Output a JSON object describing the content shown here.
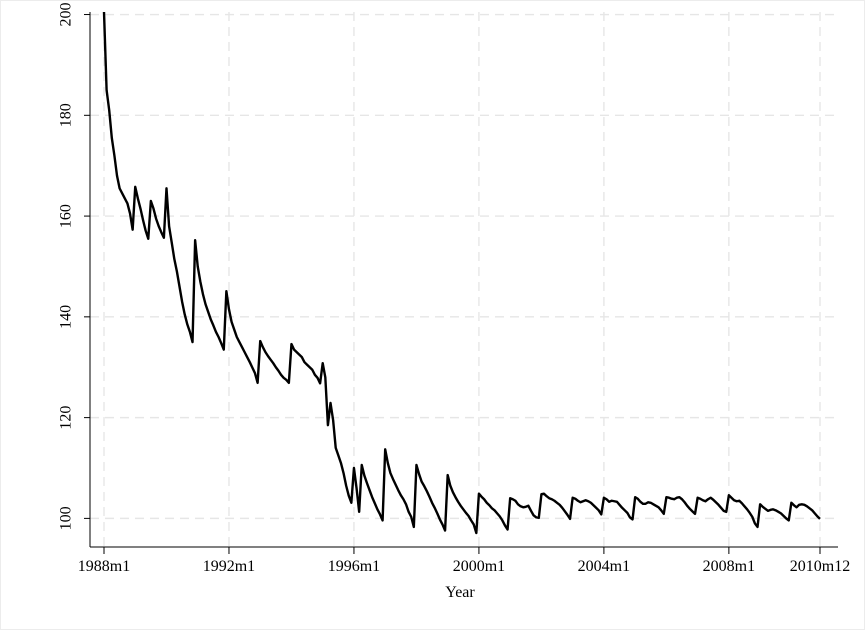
{
  "chart_data": {
    "type": "line",
    "title": "",
    "xlabel": "Year",
    "ylabel": "",
    "x_tick_labels": [
      "1988m1",
      "1992m1",
      "1996m1",
      "2000m1",
      "2004m1",
      "2008m1",
      "2010m12"
    ],
    "x_ticks": [
      "1988-01",
      "1992-01",
      "1996-01",
      "2000-01",
      "2004-01",
      "2008-01",
      "2010-12"
    ],
    "y_ticks": [
      100,
      120,
      140,
      160,
      180,
      200
    ],
    "xlim": [
      "1988-01",
      "2010-12"
    ],
    "ylim": [
      97,
      201
    ],
    "grid": true,
    "line_color": "#000000",
    "grid_color": "#e6e6e6",
    "series": [
      {
        "x": [
          "1988-01",
          "1988-02",
          "1988-03",
          "1988-04",
          "1988-05",
          "1988-06",
          "1988-07",
          "1988-08",
          "1988-09",
          "1988-10",
          "1988-11",
          "1988-12",
          "1989-01",
          "1989-02",
          "1989-03",
          "1989-04",
          "1989-05",
          "1989-06",
          "1989-07",
          "1989-08",
          "1989-09",
          "1989-10",
          "1989-11",
          "1989-12",
          "1990-01",
          "1990-02",
          "1990-03",
          "1990-04",
          "1990-05",
          "1990-06",
          "1990-07",
          "1990-08",
          "1990-09",
          "1990-10",
          "1990-11",
          "1990-12",
          "1991-01",
          "1991-02",
          "1991-03",
          "1991-04",
          "1991-05",
          "1991-06",
          "1991-07",
          "1991-08",
          "1991-09",
          "1991-10",
          "1991-11",
          "1991-12",
          "1992-01",
          "1992-02",
          "1992-03",
          "1992-04",
          "1992-05",
          "1992-06",
          "1992-07",
          "1992-08",
          "1992-09",
          "1992-10",
          "1992-11",
          "1992-12",
          "1993-01",
          "1993-02",
          "1993-03",
          "1993-04",
          "1993-05",
          "1993-06",
          "1993-07",
          "1993-08",
          "1993-09",
          "1993-10",
          "1993-11",
          "1993-12",
          "1994-01",
          "1994-02",
          "1994-03",
          "1994-04",
          "1994-05",
          "1994-06",
          "1994-07",
          "1994-08",
          "1994-09",
          "1994-10",
          "1994-11",
          "1994-12",
          "1995-01",
          "1995-02",
          "1995-03",
          "1995-04",
          "1995-05",
          "1995-06",
          "1995-07",
          "1995-08",
          "1995-09",
          "1995-10",
          "1995-11",
          "1995-12",
          "1996-01",
          "1996-02",
          "1996-03",
          "1996-04",
          "1996-05",
          "1996-06",
          "1996-07",
          "1996-08",
          "1996-09",
          "1996-10",
          "1996-11",
          "1996-12",
          "1997-01",
          "1997-02",
          "1997-03",
          "1997-04",
          "1997-05",
          "1997-06",
          "1997-07",
          "1997-08",
          "1997-09",
          "1997-10",
          "1997-11",
          "1997-12",
          "1998-01",
          "1998-02",
          "1998-03",
          "1998-04",
          "1998-05",
          "1998-06",
          "1998-07",
          "1998-08",
          "1998-09",
          "1998-10",
          "1998-11",
          "1998-12",
          "1999-01",
          "1999-02",
          "1999-03",
          "1999-04",
          "1999-05",
          "1999-06",
          "1999-07",
          "1999-08",
          "1999-09",
          "1999-10",
          "1999-11",
          "1999-12",
          "2000-01",
          "2000-02",
          "2000-03",
          "2000-04",
          "2000-05",
          "2000-06",
          "2000-07",
          "2000-08",
          "2000-09",
          "2000-10",
          "2000-11",
          "2000-12",
          "2001-01",
          "2001-02",
          "2001-03",
          "2001-04",
          "2001-05",
          "2001-06",
          "2001-07",
          "2001-08",
          "2001-09",
          "2001-10",
          "2001-11",
          "2001-12",
          "2002-01",
          "2002-02",
          "2002-03",
          "2002-04",
          "2002-05",
          "2002-06",
          "2002-07",
          "2002-08",
          "2002-09",
          "2002-10",
          "2002-11",
          "2002-12",
          "2003-01",
          "2003-02",
          "2003-03",
          "2003-04",
          "2003-05",
          "2003-06",
          "2003-07",
          "2003-08",
          "2003-09",
          "2003-10",
          "2003-11",
          "2003-12",
          "2004-01",
          "2004-02",
          "2004-03",
          "2004-04",
          "2004-05",
          "2004-06",
          "2004-07",
          "2004-08",
          "2004-09",
          "2004-10",
          "2004-11",
          "2004-12",
          "2005-01",
          "2005-02",
          "2005-03",
          "2005-04",
          "2005-05",
          "2005-06",
          "2005-07",
          "2005-08",
          "2005-09",
          "2005-10",
          "2005-11",
          "2005-12",
          "2006-01",
          "2006-02",
          "2006-03",
          "2006-04",
          "2006-05",
          "2006-06",
          "2006-07",
          "2006-08",
          "2006-09",
          "2006-10",
          "2006-11",
          "2006-12",
          "2007-01",
          "2007-02",
          "2007-03",
          "2007-04",
          "2007-05",
          "2007-06",
          "2007-07",
          "2007-08",
          "2007-09",
          "2007-10",
          "2007-11",
          "2007-12",
          "2008-01",
          "2008-02",
          "2008-03",
          "2008-04",
          "2008-05",
          "2008-06",
          "2008-07",
          "2008-08",
          "2008-09",
          "2008-10",
          "2008-11",
          "2008-12",
          "2009-01",
          "2009-02",
          "2009-03",
          "2009-04",
          "2009-05",
          "2009-06",
          "2009-07",
          "2009-08",
          "2009-09",
          "2009-10",
          "2009-11",
          "2009-12",
          "2010-01",
          "2010-02",
          "2010-03",
          "2010-04",
          "2010-05",
          "2010-06",
          "2010-07",
          "2010-08",
          "2010-09",
          "2010-10",
          "2010-11",
          "2010-12"
        ],
        "values": [
          200.5,
          185,
          181,
          175.5,
          172,
          168,
          165.5,
          164.5,
          163.5,
          162.5,
          160.5,
          157.3,
          165.8,
          163.5,
          161.5,
          159.2,
          157.1,
          155.5,
          163,
          161.5,
          159.5,
          158,
          156.8,
          155.7,
          165.5,
          158,
          154.8,
          151.5,
          149,
          146,
          143,
          140.5,
          138.5,
          137,
          135,
          155.2,
          150,
          147,
          144.5,
          142.5,
          141,
          139.5,
          138.3,
          137,
          136,
          134.8,
          133.5,
          145.1,
          141.5,
          139,
          137.5,
          136,
          135,
          134,
          133,
          132,
          131,
          129.9,
          128.8,
          126.9,
          135.2,
          134,
          133,
          132.2,
          131.5,
          130.8,
          130,
          129.3,
          128.5,
          127.9,
          127.5,
          126.9,
          134.6,
          133.5,
          133,
          132.5,
          132,
          131,
          130.5,
          130,
          129.5,
          128.5,
          127.9,
          126.8,
          130.8,
          128,
          118.5,
          122.9,
          119.5,
          114,
          112.5,
          111,
          109,
          106.5,
          104.5,
          103.1,
          110,
          106,
          101.3,
          110.6,
          108.5,
          107,
          105.6,
          104.2,
          103,
          101.8,
          100.8,
          99.6,
          113.7,
          111,
          109,
          107.8,
          106.7,
          105.6,
          104.6,
          103.8,
          102.8,
          101.3,
          100.3,
          98.3,
          110.6,
          108.8,
          107.3,
          106.4,
          105.4,
          104.3,
          103.1,
          102.1,
          101,
          99.8,
          98.8,
          97.6,
          108.6,
          106.5,
          105.2,
          104.2,
          103.3,
          102.5,
          101.8,
          101.1,
          100.5,
          99.6,
          98.8,
          97.1,
          104.9,
          104.3,
          103.8,
          103.1,
          102.6,
          102,
          101.6,
          101,
          100.4,
          99.6,
          98.6,
          97.8,
          104,
          103.8,
          103.5,
          102.8,
          102.4,
          102.2,
          102.3,
          102.5,
          101.5,
          100.6,
          100.2,
          100.1,
          104.8,
          104.9,
          104.4,
          104,
          103.8,
          103.5,
          103.1,
          102.7,
          102.1,
          101.4,
          100.7,
          99.9,
          104.1,
          103.9,
          103.5,
          103.2,
          103.4,
          103.6,
          103.4,
          103.1,
          102.6,
          102.1,
          101.6,
          100.8,
          104.1,
          103.8,
          103.3,
          103.5,
          103.4,
          103.3,
          102.7,
          102.1,
          101.6,
          101.1,
          100.2,
          99.8,
          104.2,
          103.9,
          103.3,
          102.9,
          102.9,
          103.2,
          103.1,
          102.8,
          102.5,
          102.2,
          101.6,
          100.9,
          104.2,
          104.1,
          103.9,
          103.8,
          104.1,
          104.2,
          103.8,
          103.2,
          102.5,
          101.9,
          101.4,
          100.9,
          104.1,
          103.9,
          103.6,
          103.4,
          103.8,
          104.1,
          103.7,
          103.2,
          102.7,
          102.1,
          101.5,
          101.3,
          104.6,
          104.1,
          103.6,
          103.4,
          103.5,
          103,
          102.4,
          101.8,
          101.1,
          100.3,
          99,
          98.3,
          102.8,
          102.3,
          101.9,
          101.5,
          101.7,
          101.8,
          101.6,
          101.3,
          101,
          100.5,
          100,
          99.6,
          103.1,
          102.6,
          102.2,
          102.7,
          102.8,
          102.7,
          102.4,
          102,
          101.6,
          101,
          100.4,
          99.9
        ]
      }
    ]
  }
}
